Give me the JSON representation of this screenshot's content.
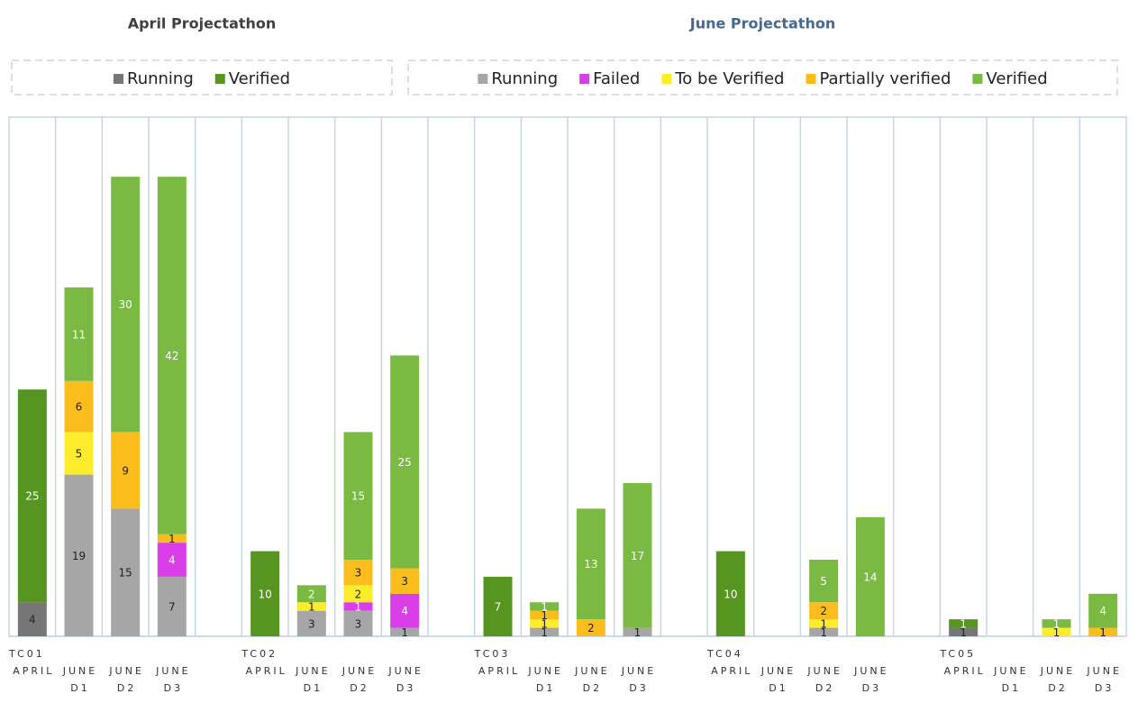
{
  "chart_data": {
    "type": "stacked_bar",
    "ylim": [
      0,
      61
    ],
    "categories": [
      [
        "APRIL"
      ],
      [
        "JUNE",
        "D1"
      ],
      [
        "JUNE",
        "D2"
      ],
      [
        "JUNE",
        "D3"
      ],
      null,
      [
        "APRIL"
      ],
      [
        "JUNE",
        "D1"
      ],
      [
        "JUNE",
        "D2"
      ],
      [
        "JUNE",
        "D3"
      ],
      null,
      [
        "APRIL"
      ],
      [
        "JUNE",
        "D1"
      ],
      [
        "JUNE",
        "D2"
      ],
      [
        "JUNE",
        "D3"
      ],
      null,
      [
        "APRIL"
      ],
      [
        "JUNE",
        "D1"
      ],
      [
        "JUNE",
        "D2"
      ],
      [
        "JUNE",
        "D3"
      ],
      null,
      [
        "APRIL"
      ],
      [
        "JUNE",
        "D1"
      ],
      [
        "JUNE",
        "D2"
      ],
      [
        "JUNE",
        "D3"
      ]
    ],
    "groups": [
      "TC01",
      "TC02",
      "TC03",
      "TC04",
      "TC05"
    ],
    "series_groups": [
      {
        "title": "April Projectathon",
        "title_color": "#404040",
        "series": [
          {
            "name": "Running",
            "color": "#767676",
            "label_color": "#222222",
            "values": [
              4,
              null,
              null,
              null,
              null,
              null,
              null,
              null,
              null,
              null,
              null,
              null,
              null,
              null,
              null,
              null,
              null,
              null,
              null,
              null,
              1,
              null,
              null,
              null
            ]
          },
          {
            "name": "Verified",
            "color": "#559520",
            "label_color": "#ffffff",
            "values": [
              25,
              null,
              null,
              null,
              null,
              10,
              null,
              null,
              null,
              null,
              7,
              null,
              null,
              null,
              null,
              10,
              null,
              null,
              null,
              null,
              1,
              null,
              null,
              null
            ]
          }
        ]
      },
      {
        "title": "June Projectathon",
        "title_color": "#44688f",
        "series": [
          {
            "name": "Running",
            "color": "#a6a6a6",
            "label_color": "#222222",
            "values": [
              null,
              19,
              15,
              7,
              null,
              null,
              3,
              3,
              1,
              null,
              null,
              1,
              null,
              1,
              null,
              null,
              null,
              1,
              null,
              null,
              null,
              null,
              null,
              null
            ]
          },
          {
            "name": "Failed",
            "color": "#d93ee8",
            "label_color": "#ffffff",
            "values": [
              null,
              null,
              null,
              4,
              null,
              null,
              null,
              1,
              4,
              null,
              null,
              null,
              null,
              null,
              null,
              null,
              null,
              null,
              null,
              null,
              null,
              null,
              null,
              null
            ]
          },
          {
            "name": "To be Verified",
            "color": "#fcec2c",
            "label_color": "#222222",
            "values": [
              null,
              5,
              null,
              null,
              null,
              null,
              1,
              2,
              null,
              null,
              null,
              1,
              null,
              null,
              null,
              null,
              null,
              1,
              null,
              null,
              null,
              null,
              1,
              null
            ]
          },
          {
            "name": "Partially verified",
            "color": "#fbbd1b",
            "label_color": "#222222",
            "values": [
              null,
              6,
              9,
              1,
              null,
              null,
              null,
              3,
              3,
              null,
              null,
              1,
              2,
              null,
              null,
              null,
              null,
              2,
              null,
              null,
              null,
              null,
              null,
              1
            ]
          },
          {
            "name": "Verified",
            "color": "#7aba42",
            "label_color": "#ffffff",
            "values": [
              null,
              11,
              30,
              42,
              null,
              null,
              2,
              15,
              25,
              null,
              null,
              1,
              13,
              17,
              null,
              null,
              null,
              5,
              14,
              null,
              null,
              null,
              1,
              4
            ]
          }
        ]
      }
    ]
  }
}
